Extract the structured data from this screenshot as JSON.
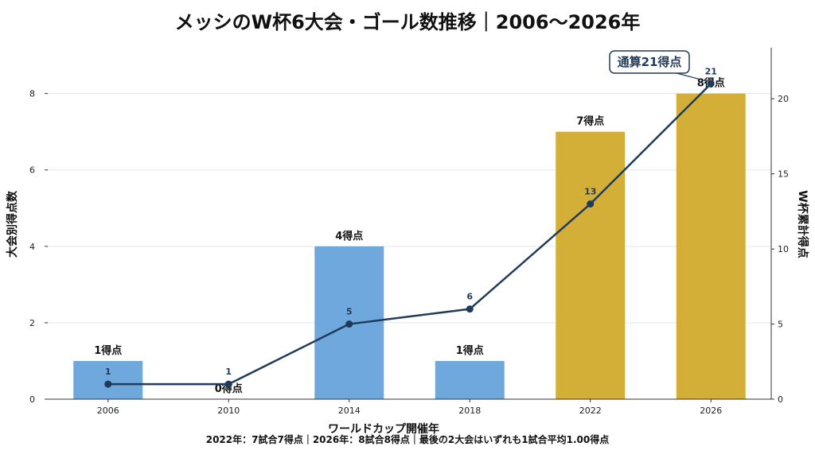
{
  "chart_data": {
    "type": "bar",
    "title": "メッシのW杯6大会・ゴール数推移｜2006〜2026年",
    "xlabel": "ワールドカップ開催年",
    "ylabel": "大会別得点数",
    "y2label": "W杯累計得点",
    "categories": [
      "2006",
      "2010",
      "2014",
      "2018",
      "2022",
      "2026"
    ],
    "series": [
      {
        "values": [
          1,
          0,
          4,
          1,
          7,
          8
        ],
        "colors": [
          "#6fa8dc",
          "#6fa8dc",
          "#6fa8dc",
          "#6fa8dc",
          "#d4af37",
          "#d4af37"
        ],
        "labels": [
          "1得点",
          "0得点",
          "4得点",
          "1得点",
          "7得点",
          "8得点"
        ]
      },
      {
        "type": "line",
        "axis": "right",
        "color": "#1f3b5c",
        "values": [
          1,
          1,
          5,
          6,
          13,
          21
        ],
        "labels": [
          "1",
          "1",
          "5",
          "6",
          "13",
          "21"
        ]
      }
    ],
    "ylim": [
      0,
      9.2
    ],
    "y_ticks": [
      0,
      2,
      4,
      6,
      8
    ],
    "y2lim": [
      0,
      23.4
    ],
    "y2_ticks": [
      0,
      5,
      10,
      15,
      20
    ],
    "grid": "horizontal",
    "annotation": "通算21得点",
    "footnote": "2022年：7試合7得点｜2026年：8試合8得点｜最後の2大会はいずれも1試合平均1.00得点"
  }
}
